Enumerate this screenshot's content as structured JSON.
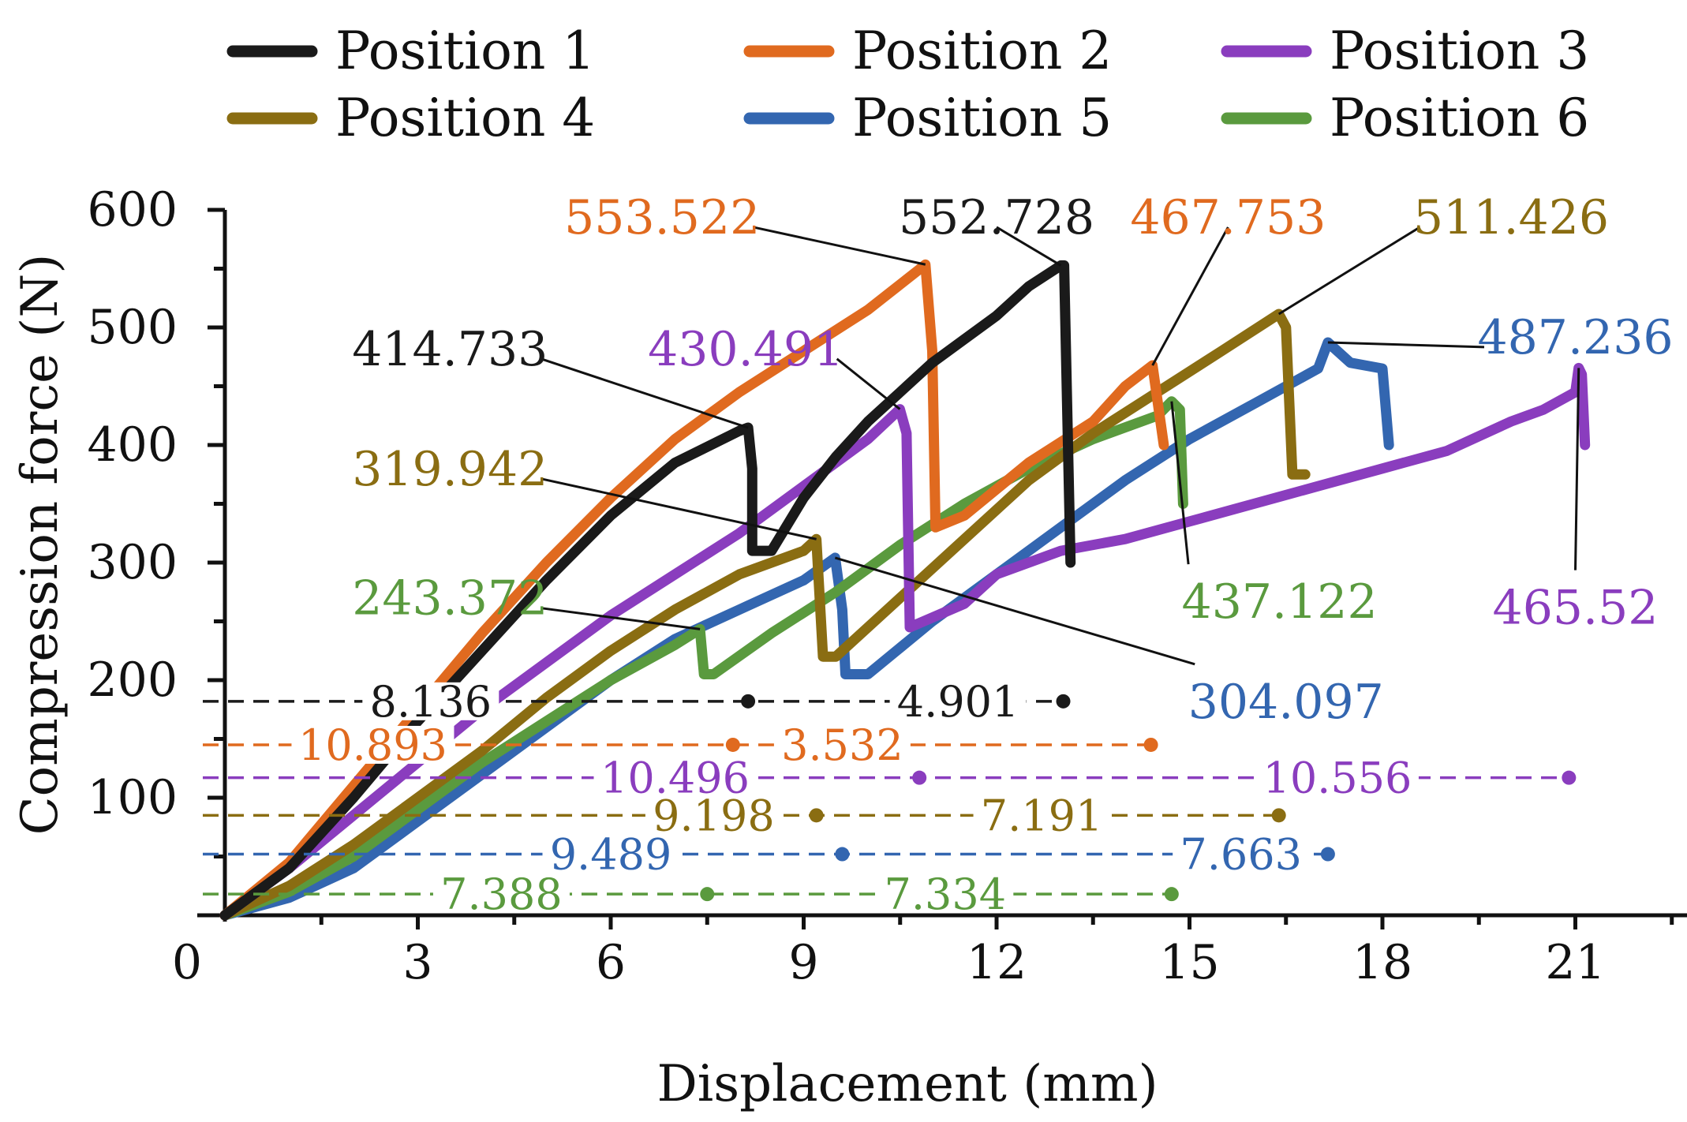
{
  "chart_data": {
    "type": "line",
    "xlabel": "Displacement (mm)",
    "ylabel": "Compression force (N)",
    "xlim": [
      0,
      23.5
    ],
    "ylim": [
      0,
      600
    ],
    "xticks": [
      "0",
      "3",
      "6",
      "9",
      "12",
      "15",
      "18",
      "21"
    ],
    "yticks": [
      "100",
      "200",
      "300",
      "400",
      "500",
      "600"
    ],
    "grid": false,
    "legend_position": "top",
    "series": [
      {
        "name": "Position 1",
        "color": "#1a1a1a",
        "points": [
          [
            0,
            0
          ],
          [
            1,
            40
          ],
          [
            2,
            100
          ],
          [
            3,
            165
          ],
          [
            4,
            225
          ],
          [
            5,
            285
          ],
          [
            6,
            340
          ],
          [
            7,
            385
          ],
          [
            8,
            412
          ],
          [
            8.136,
            414.733
          ],
          [
            8.2,
            380
          ],
          [
            8.2,
            310
          ],
          [
            8.5,
            310
          ],
          [
            9,
            355
          ],
          [
            9.5,
            390
          ],
          [
            10,
            420
          ],
          [
            10.5,
            445
          ],
          [
            11,
            470
          ],
          [
            11.5,
            490
          ],
          [
            12,
            510
          ],
          [
            12.5,
            535
          ],
          [
            13,
            552.728
          ],
          [
            13.05,
            552.728
          ],
          [
            13.15,
            300
          ]
        ]
      },
      {
        "name": "Position 2",
        "color": "#e06a1f",
        "points": [
          [
            0,
            0
          ],
          [
            1,
            45
          ],
          [
            2,
            110
          ],
          [
            3,
            175
          ],
          [
            4,
            240
          ],
          [
            5,
            300
          ],
          [
            6,
            355
          ],
          [
            7,
            405
          ],
          [
            8,
            445
          ],
          [
            9,
            480
          ],
          [
            10,
            515
          ],
          [
            10.893,
            553.522
          ],
          [
            11,
            480
          ],
          [
            11.05,
            330
          ],
          [
            11.5,
            340
          ],
          [
            12.5,
            385
          ],
          [
            13.5,
            420
          ],
          [
            14,
            450
          ],
          [
            14.425,
            467.753
          ],
          [
            14.6,
            400
          ]
        ]
      },
      {
        "name": "Position 3",
        "color": "#8a3dbe",
        "points": [
          [
            0,
            0
          ],
          [
            1,
            40
          ],
          [
            2,
            85
          ],
          [
            3,
            130
          ],
          [
            4,
            175
          ],
          [
            5,
            215
          ],
          [
            6,
            255
          ],
          [
            7,
            290
          ],
          [
            8,
            325
          ],
          [
            9,
            365
          ],
          [
            10,
            405
          ],
          [
            10.496,
            430.491
          ],
          [
            10.6,
            410
          ],
          [
            10.65,
            245
          ],
          [
            11.5,
            265
          ],
          [
            12,
            290
          ],
          [
            13,
            310
          ],
          [
            14,
            320
          ],
          [
            15,
            335
          ],
          [
            16,
            350
          ],
          [
            17,
            365
          ],
          [
            18,
            380
          ],
          [
            19,
            395
          ],
          [
            20,
            420
          ],
          [
            20.5,
            430
          ],
          [
            21,
            445
          ],
          [
            21.052,
            465.52
          ],
          [
            21.1,
            460
          ],
          [
            21.15,
            400
          ]
        ]
      },
      {
        "name": "Position 4",
        "color": "#8a6d12",
        "points": [
          [
            0,
            0
          ],
          [
            1,
            25
          ],
          [
            2,
            60
          ],
          [
            3,
            100
          ],
          [
            4,
            140
          ],
          [
            5,
            185
          ],
          [
            6,
            225
          ],
          [
            7,
            260
          ],
          [
            8,
            290
          ],
          [
            9,
            310
          ],
          [
            9.198,
            319.942
          ],
          [
            9.3,
            220
          ],
          [
            9.5,
            220
          ],
          [
            10.5,
            270
          ],
          [
            11.5,
            320
          ],
          [
            12.5,
            370
          ],
          [
            13.5,
            410
          ],
          [
            14.5,
            445
          ],
          [
            15.5,
            480
          ],
          [
            16.389,
            511.426
          ],
          [
            16.5,
            500
          ],
          [
            16.6,
            375
          ],
          [
            16.8,
            375
          ]
        ]
      },
      {
        "name": "Position 5",
        "color": "#3366b0",
        "points": [
          [
            0,
            0
          ],
          [
            1,
            15
          ],
          [
            2,
            40
          ],
          [
            3,
            80
          ],
          [
            4,
            120
          ],
          [
            5,
            160
          ],
          [
            6,
            200
          ],
          [
            7,
            235
          ],
          [
            8,
            260
          ],
          [
            9,
            285
          ],
          [
            9.489,
            304.097
          ],
          [
            9.6,
            260
          ],
          [
            9.65,
            205
          ],
          [
            10,
            205
          ],
          [
            11,
            250
          ],
          [
            12,
            290
          ],
          [
            13,
            330
          ],
          [
            14,
            370
          ],
          [
            15,
            405
          ],
          [
            16,
            435
          ],
          [
            17,
            465
          ],
          [
            17.152,
            487.236
          ],
          [
            17.5,
            470
          ],
          [
            18,
            465
          ],
          [
            18.1,
            400
          ]
        ]
      },
      {
        "name": "Position 6",
        "color": "#5a9a3e",
        "points": [
          [
            0,
            0
          ],
          [
            1,
            20
          ],
          [
            2,
            50
          ],
          [
            3,
            90
          ],
          [
            4,
            130
          ],
          [
            5,
            165
          ],
          [
            6,
            200
          ],
          [
            7,
            230
          ],
          [
            7.388,
            243.372
          ],
          [
            7.45,
            205
          ],
          [
            7.6,
            205
          ],
          [
            8.5,
            240
          ],
          [
            9.5,
            275
          ],
          [
            10.5,
            315
          ],
          [
            11.5,
            350
          ],
          [
            12.5,
            380
          ],
          [
            13.5,
            405
          ],
          [
            14.5,
            425
          ],
          [
            14.722,
            437.122
          ],
          [
            14.85,
            430
          ],
          [
            14.9,
            350
          ]
        ]
      }
    ],
    "peak_labels": [
      {
        "text": "414.733",
        "series": 0,
        "x": 8.136,
        "y": 414.733,
        "tx": 3.5,
        "ty": 480
      },
      {
        "text": "552.728",
        "series": 0,
        "x": 13.0,
        "y": 552.728,
        "tx": 12.0,
        "ty": 592
      },
      {
        "text": "553.522",
        "series": 1,
        "x": 10.893,
        "y": 553.522,
        "tx": 6.8,
        "ty": 592
      },
      {
        "text": "467.753",
        "series": 1,
        "x": 14.425,
        "y": 467.753,
        "tx": 15.6,
        "ty": 592
      },
      {
        "text": "430.491",
        "series": 2,
        "x": 10.496,
        "y": 430.491,
        "tx": 8.1,
        "ty": 480
      },
      {
        "text": "465.52",
        "series": 2,
        "x": 21.052,
        "y": 465.52,
        "tx": 21.0,
        "ty": 260
      },
      {
        "text": "319.942",
        "series": 3,
        "x": 9.198,
        "y": 319.942,
        "tx": 3.5,
        "ty": 378
      },
      {
        "text": "511.426",
        "series": 3,
        "x": 16.389,
        "y": 511.426,
        "tx": 20.0,
        "ty": 592
      },
      {
        "text": "304.097",
        "series": 4,
        "x": 9.489,
        "y": 304.097,
        "tx": 16.5,
        "ty": 180
      },
      {
        "text": "487.236",
        "series": 4,
        "x": 17.152,
        "y": 487.236,
        "tx": 21.0,
        "ty": 490
      },
      {
        "text": "243.372",
        "series": 5,
        "x": 7.388,
        "y": 243.372,
        "tx": 3.5,
        "ty": 268
      },
      {
        "text": "437.122",
        "series": 5,
        "x": 14.722,
        "y": 437.122,
        "tx": 16.4,
        "ty": 265
      }
    ],
    "segments": [
      {
        "series": 0,
        "y": 182,
        "x_end": [
          8.136,
          13.037
        ],
        "labels": [
          {
            "text": "8.136",
            "x": 3.2
          },
          {
            "text": "4.901",
            "x": 11.4
          }
        ]
      },
      {
        "series": 1,
        "y": 145,
        "x_end": [
          7.9,
          14.4
        ],
        "labels": [
          {
            "text": "10.893",
            "x": 2.3
          },
          {
            "text": "3.532",
            "x": 9.6
          }
        ]
      },
      {
        "series": 2,
        "y": 117,
        "x_end": [
          10.8,
          20.9
        ],
        "labels": [
          {
            "text": "10.496",
            "x": 7.0
          },
          {
            "text": "10.556",
            "x": 17.3
          }
        ]
      },
      {
        "series": 3,
        "y": 85,
        "x_end": [
          9.198,
          16.389
        ],
        "labels": [
          {
            "text": "9.198",
            "x": 7.6
          },
          {
            "text": "7.191",
            "x": 12.7
          }
        ]
      },
      {
        "series": 4,
        "y": 52,
        "x_end": [
          9.6,
          17.152
        ],
        "labels": [
          {
            "text": "9.489",
            "x": 6.0
          },
          {
            "text": "7.663",
            "x": 15.8
          }
        ]
      },
      {
        "series": 5,
        "y": 18,
        "x_end": [
          7.5,
          14.722
        ],
        "labels": [
          {
            "text": "7.388",
            "x": 4.3
          },
          {
            "text": "7.334",
            "x": 11.2
          }
        ]
      }
    ]
  }
}
